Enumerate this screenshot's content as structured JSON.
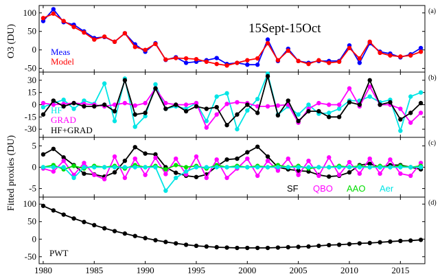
{
  "figure": {
    "title": "15Sept-15Oct",
    "ylabel_top": "O3 (DU)",
    "ylabel_bottom": "Fitted proxies (DU)",
    "x_ticks": [
      "1980",
      "1985",
      "1990",
      "1995",
      "2000",
      "2005",
      "2010",
      "2015"
    ]
  },
  "chart_data": [
    {
      "type": "line",
      "panel_label": "(a)",
      "x": [
        1980,
        1981,
        1982,
        1983,
        1984,
        1985,
        1986,
        1987,
        1988,
        1989,
        1990,
        1991,
        1992,
        1993,
        1994,
        1995,
        1996,
        1997,
        1998,
        1999,
        2000,
        2001,
        2002,
        2003,
        2004,
        2005,
        2006,
        2007,
        2008,
        2009,
        2010,
        2011,
        2012,
        2013,
        2014,
        2015,
        2016,
        2017
      ],
      "ylim": [
        -60,
        120
      ],
      "yticks": [
        "100",
        "50",
        "0",
        "-50"
      ],
      "series": [
        {
          "name": "Meas",
          "color": "#0000ff",
          "values": [
            78,
            110,
            75,
            68,
            50,
            32,
            35,
            22,
            45,
            15,
            -5,
            18,
            -27,
            -20,
            -35,
            -32,
            -28,
            -22,
            -38,
            -35,
            -40,
            -40,
            28,
            -30,
            3,
            -30,
            -35,
            -30,
            -30,
            -30,
            12,
            -35,
            18,
            -5,
            -10,
            -20,
            -12,
            5
          ]
        },
        {
          "name": "Model",
          "color": "#ff0000",
          "values": [
            86,
            98,
            78,
            62,
            47,
            28,
            36,
            22,
            45,
            8,
            0,
            16,
            -26,
            -22,
            -23,
            -25,
            -32,
            -38,
            -42,
            -35,
            -28,
            -23,
            18,
            -28,
            -2,
            -30,
            -38,
            -28,
            -35,
            -32,
            5,
            -23,
            22,
            -8,
            -15,
            -18,
            -15,
            -5
          ]
        }
      ]
    },
    {
      "type": "line",
      "panel_label": "(b)",
      "x": [
        1980,
        1981,
        1982,
        1983,
        1984,
        1985,
        1986,
        1987,
        1988,
        1989,
        1990,
        1991,
        1992,
        1993,
        1994,
        1995,
        1996,
        1997,
        1998,
        1999,
        2000,
        2001,
        2002,
        2003,
        2004,
        2005,
        2006,
        2007,
        2008,
        2009,
        2010,
        2011,
        2012,
        2013,
        2014,
        2015,
        2016,
        2017
      ],
      "ylim": [
        -40,
        40
      ],
      "yticks": [
        "30",
        "15",
        "0",
        "-15",
        "-30"
      ],
      "series": [
        {
          "name": "HF",
          "color": "#00e5e5",
          "values": [
            -3,
            2,
            6,
            -5,
            5,
            1,
            26,
            -20,
            32,
            -27,
            -14,
            25,
            -5,
            -2,
            -5,
            2,
            -20,
            10,
            14,
            -30,
            -7,
            7,
            38,
            -12,
            -2,
            -12,
            0,
            -11,
            -10,
            -5,
            5,
            5,
            10,
            3,
            6,
            -32,
            10,
            15
          ]
        },
        {
          "name": "GRAD",
          "color": "#ff00ff",
          "values": [
            2,
            0,
            1,
            2,
            1,
            0,
            -2,
            0,
            2,
            -1,
            2,
            20,
            2,
            0,
            0,
            2,
            -28,
            -12,
            1,
            3,
            2,
            -2,
            -2,
            -1,
            0,
            -22,
            -5,
            2,
            0,
            0,
            20,
            -2,
            22,
            0,
            0,
            -5,
            -22,
            -10
          ]
        },
        {
          "name": "HF+GRAD",
          "color": "#000000",
          "values": [
            -12,
            5,
            -2,
            2,
            -2,
            -2,
            0,
            -8,
            30,
            -12,
            -10,
            20,
            -5,
            0,
            -8,
            -2,
            -5,
            -3,
            -25,
            -12,
            0,
            -10,
            35,
            -13,
            5,
            -20,
            -8,
            -8,
            -15,
            -15,
            3,
            0,
            30,
            0,
            3,
            -18,
            -10,
            2
          ]
        }
      ]
    },
    {
      "type": "line",
      "panel_label": "(c)",
      "x": [
        1980,
        1981,
        1982,
        1983,
        1984,
        1985,
        1986,
        1987,
        1988,
        1989,
        1990,
        1991,
        1992,
        1993,
        1994,
        1995,
        1996,
        1997,
        1998,
        1999,
        2000,
        2001,
        2002,
        2003,
        2004,
        2005,
        2006,
        2007,
        2008,
        2009,
        2010,
        2011,
        2012,
        2013,
        2014,
        2015,
        2016,
        2017
      ],
      "ylim": [
        -7,
        7
      ],
      "yticks": [
        "5",
        "0",
        "-5"
      ],
      "series": [
        {
          "name": "SF",
          "color": "#000000",
          "values": [
            3.0,
            4.3,
            2.3,
            0.5,
            -1.5,
            -1.7,
            -2.2,
            -1.2,
            1.5,
            4.7,
            3.2,
            3.0,
            0,
            -1.3,
            -2.0,
            -2.3,
            -1.7,
            0.2,
            1.8,
            2.0,
            3.5,
            4.8,
            2.5,
            0,
            -0.5,
            -0.8,
            -1.0,
            -1.8,
            -2.2,
            -2.0,
            -1.2,
            0.5,
            0.8,
            0,
            0.5,
            0.5,
            0,
            -0.5
          ]
        },
        {
          "name": "QBO",
          "color": "#ff00ff",
          "values": [
            -0.3,
            -1.0,
            1.5,
            -1.8,
            1.0,
            -1.8,
            -2.8,
            2.5,
            -2.5,
            2.0,
            -1.8,
            2.2,
            -1.6,
            2.0,
            -1.7,
            2.5,
            -2.5,
            1.8,
            -2.5,
            -0.3,
            2.0,
            -2.0,
            1.5,
            -0.8,
            2.0,
            -1.8,
            1.5,
            -2.0,
            2.3,
            -1.8,
            1.2,
            -1.5,
            2.0,
            -1.5,
            1.8,
            -1.5,
            -2.0,
            1.0
          ]
        },
        {
          "name": "AAO",
          "color": "#00dd00",
          "values": [
            0,
            0.5,
            -0.5,
            0.3,
            -0.3,
            0.3,
            0,
            0.3,
            -0.3,
            0.5,
            0,
            0.3,
            -0.5,
            0.5,
            0,
            0.3,
            -0.3,
            0.5,
            0,
            0.3,
            0,
            0.3,
            0,
            0.5,
            0,
            0.3,
            -0.3,
            0,
            0,
            0.3,
            0,
            0.3,
            0,
            0.3,
            0,
            0.3,
            0,
            0.3
          ]
        },
        {
          "name": "Aer",
          "color": "#00e5e5",
          "values": [
            0,
            0,
            0,
            -2.5,
            0,
            0,
            0,
            0,
            0,
            0,
            0,
            0,
            -5.5,
            -2.5,
            -1.0,
            0,
            0,
            0,
            0,
            0,
            0,
            0,
            0,
            0,
            0,
            0,
            0,
            0,
            0,
            0,
            0,
            0,
            0,
            0,
            0,
            0,
            0,
            0
          ]
        }
      ]
    },
    {
      "type": "line",
      "panel_label": "(d)",
      "x": [
        1980,
        1981,
        1982,
        1983,
        1984,
        1985,
        1986,
        1987,
        1988,
        1989,
        1990,
        1991,
        1992,
        1993,
        1994,
        1995,
        1996,
        1997,
        1998,
        1999,
        2000,
        2001,
        2002,
        2003,
        2004,
        2005,
        2006,
        2007,
        2008,
        2009,
        2010,
        2011,
        2012,
        2013,
        2014,
        2015,
        2016,
        2017
      ],
      "ylim": [
        -70,
        120
      ],
      "yticks": [
        "100",
        "50",
        "0",
        "-50"
      ],
      "series": [
        {
          "name": "PWT",
          "color": "#000000",
          "values": [
            95,
            82,
            70,
            59,
            49,
            40,
            31,
            23,
            16,
            9,
            3,
            -3,
            -8,
            -12,
            -16,
            -19,
            -21,
            -23,
            -24,
            -25,
            -25,
            -25,
            -25,
            -24,
            -23,
            -22,
            -21,
            -19,
            -17,
            -16,
            -14,
            -12,
            -11,
            -9,
            -7,
            -5,
            -4,
            -2
          ]
        }
      ]
    }
  ]
}
